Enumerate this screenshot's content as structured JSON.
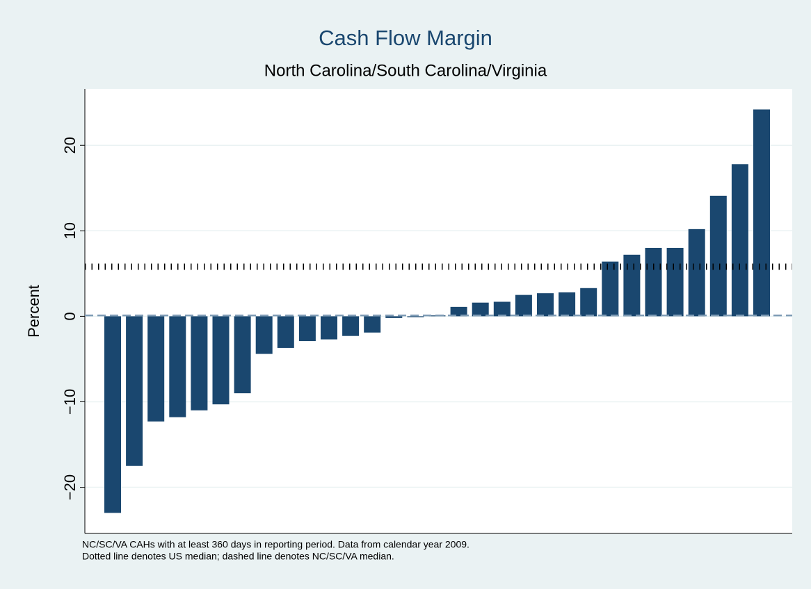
{
  "chart_data": {
    "type": "bar",
    "title": "Cash Flow Margin",
    "subtitle": "North Carolina/South Carolina/Virginia",
    "y_label": "Percent",
    "values": [
      -23.0,
      -17.5,
      -12.3,
      -11.8,
      -11.0,
      -10.3,
      -9.0,
      -4.4,
      -3.7,
      -2.9,
      -2.7,
      -2.3,
      -1.9,
      -0.2,
      -0.1,
      0.1,
      1.1,
      1.6,
      1.7,
      2.5,
      2.7,
      2.8,
      3.3,
      6.4,
      7.2,
      8.0,
      8.0,
      10.2,
      14.1,
      17.8,
      24.2
    ],
    "color": "#1a476f",
    "ylim": [
      -25.4,
      26.6
    ],
    "yticks": [
      {
        "value": -20,
        "label": "−20"
      },
      {
        "value": -10,
        "label": "−10"
      },
      0,
      10,
      20
    ],
    "grid": true,
    "reference_lines": [
      {
        "value": 5.8,
        "style": "dotted",
        "color": "#000000"
      },
      {
        "value": 0.1,
        "style": "dashed",
        "color": "#7f9cb5"
      }
    ],
    "notes": [
      "NC/SC/VA CAHs with at least 360 days in reporting period. Data from calendar year 2009.",
      "Dotted line denotes US median; dashed line denotes NC/SC/VA median."
    ]
  }
}
